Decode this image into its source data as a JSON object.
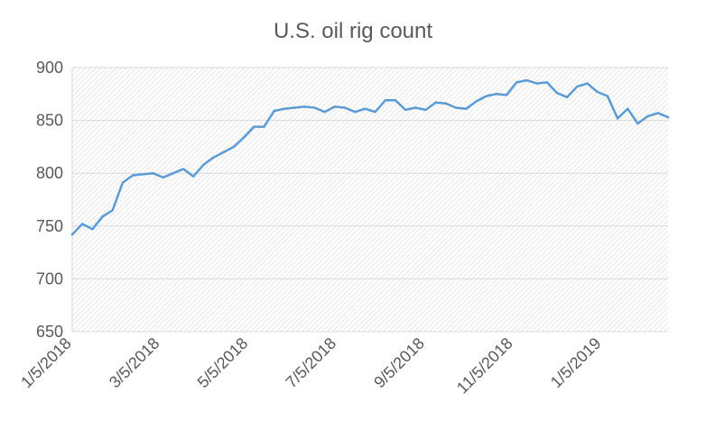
{
  "chart_data": {
    "type": "line",
    "title": "U.S. oil rig count",
    "xlabel": "",
    "ylabel": "",
    "ylim": [
      650,
      900
    ],
    "y_ticks": [
      650,
      700,
      750,
      800,
      850,
      900
    ],
    "x_tick_labels": [
      "1/5/2018",
      "3/5/2018",
      "5/5/2018",
      "7/5/2018",
      "9/5/2018",
      "11/5/2018",
      "1/5/2019"
    ],
    "grid": true,
    "plot_fill": "hatched light gray",
    "series_color": "#5b9bd5",
    "series": [
      {
        "values": [
          742,
          752,
          747,
          759,
          765,
          791,
          798,
          799,
          800,
          796,
          800,
          804,
          797,
          808,
          815,
          820,
          825,
          834,
          844,
          844,
          859,
          861,
          862,
          863,
          862,
          858,
          863,
          862,
          858,
          861,
          858,
          869,
          869,
          860,
          862,
          860,
          867,
          866,
          862,
          861,
          868,
          873,
          875,
          874,
          886,
          888,
          885,
          886,
          876,
          872,
          882,
          885,
          877,
          873,
          852,
          861,
          847,
          854,
          857,
          853
        ]
      }
    ]
  }
}
